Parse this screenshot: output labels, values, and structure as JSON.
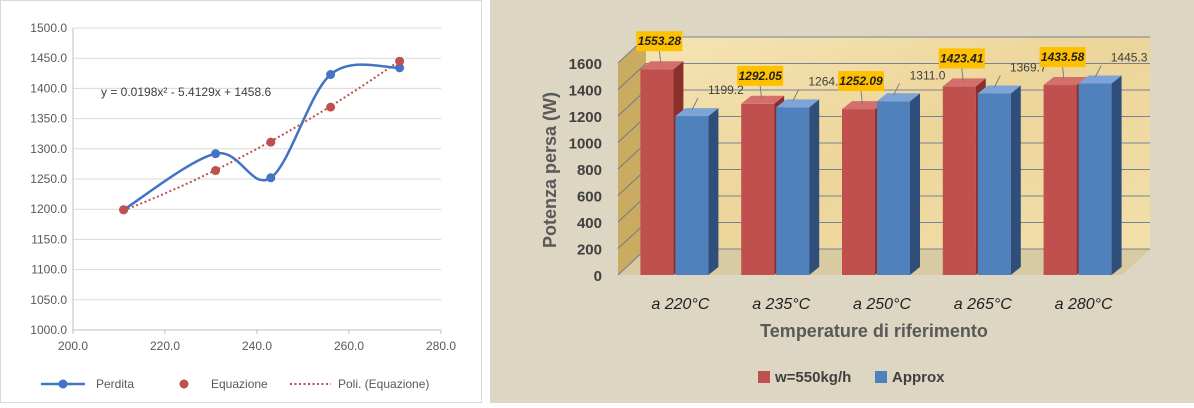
{
  "chart_data": [
    {
      "type": "scatter",
      "xlim": [
        200,
        280
      ],
      "ylim": [
        1000,
        1500
      ],
      "x_ticks": [
        "200.0",
        "220.0",
        "240.0",
        "260.0",
        "280.0"
      ],
      "y_ticks": [
        "1000.0",
        "1050.0",
        "1100.0",
        "1150.0",
        "1200.0",
        "1250.0",
        "1300.0",
        "1350.0",
        "1400.0",
        "1450.0",
        "1500.0"
      ],
      "grid": "horizontal",
      "legend_position": "bottom",
      "equation_label": "y = 0.0198x² - 5.4129x + 1458.6",
      "trendline_coeffs": [
        0.0198,
        -5.4129,
        1458.6
      ],
      "series": [
        {
          "name": "Perdita",
          "style": "smooth-line-markers",
          "color": "#4472c4",
          "x": [
            211,
            231,
            243,
            256,
            271
          ],
          "y": [
            1199,
            1292,
            1252,
            1423,
            1434
          ]
        },
        {
          "name": "Equazione",
          "style": "markers",
          "color": "#c0504d",
          "x": [
            211,
            231,
            243,
            256,
            271
          ],
          "y": [
            1199,
            1264,
            1311,
            1369,
            1445
          ]
        },
        {
          "name": "Poli. (Equazione)",
          "style": "dotted-trendline",
          "color": "#c0504d"
        }
      ]
    },
    {
      "type": "bar",
      "variant": "3d-clustered",
      "categories": [
        "a 220°C",
        "a 235°C",
        "a 250°C",
        "a 265°C",
        "a 280°C"
      ],
      "ylabel": "Potenza persa (W)",
      "xlabel": "Temperature di riferimento",
      "ylim": [
        0,
        1600
      ],
      "y_ticks": [
        "0",
        "200",
        "400",
        "600",
        "800",
        "1000",
        "1200",
        "1400",
        "1600"
      ],
      "legend_position": "bottom",
      "series": [
        {
          "name": "w=550kg/h",
          "color": "#c0504d",
          "values": [
            1553.28,
            1292.05,
            1252.09,
            1423.41,
            1433.58
          ],
          "labels": [
            "1553.28",
            "1292.05",
            "1252.09",
            "1423.41",
            "1433.58"
          ]
        },
        {
          "name": "Approx",
          "color": "#4f81bd",
          "values": [
            1199.2,
            1264.9,
            1311.0,
            1369.7,
            1445.3
          ],
          "labels": [
            "1199.2",
            "1264.9",
            "1311.0",
            "1369.7",
            "1445.3"
          ]
        }
      ]
    }
  ]
}
